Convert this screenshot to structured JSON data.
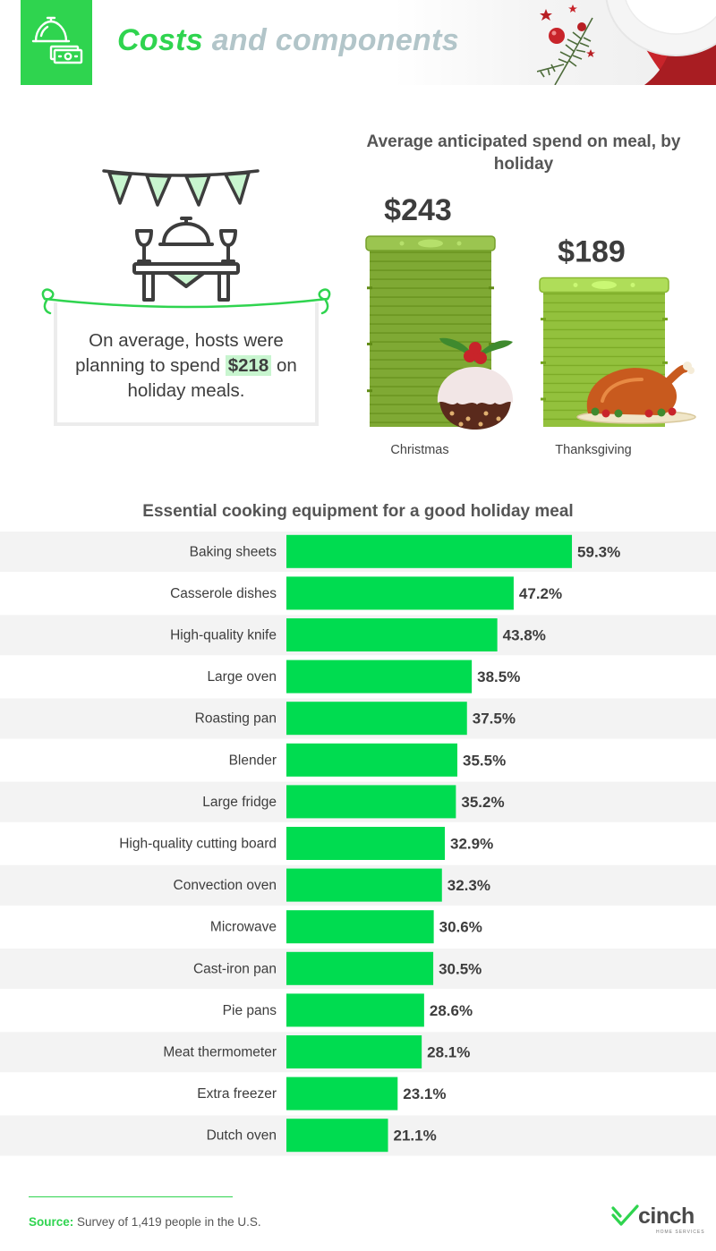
{
  "header": {
    "title_part1": "Costs",
    "title_part2": "and components",
    "icon": "cloche-cash-icon"
  },
  "callout": {
    "text_before": "On average, hosts were planning to spend ",
    "amount": "$218",
    "text_after": " on holiday meals."
  },
  "chart_data": [
    {
      "type": "bar",
      "title": "Average anticipated spend on meal, by holiday",
      "categories": [
        "Christmas",
        "Thanksgiving"
      ],
      "values": [
        243,
        189
      ],
      "value_labels": [
        "$243",
        "$189"
      ],
      "unit": "$",
      "colors": [
        "#7fa934",
        "#93c13d"
      ],
      "icons": [
        "christmas-pudding-icon",
        "roast-turkey-icon"
      ]
    },
    {
      "type": "bar",
      "orientation": "horizontal",
      "title": "Essential cooking equipment for a good holiday meal",
      "categories": [
        "Baking sheets",
        "Casserole dishes",
        "High-quality knife",
        "Large oven",
        "Roasting pan",
        "Blender",
        "Large fridge",
        "High-quality cutting board",
        "Convection oven",
        "Microwave",
        "Cast-iron pan",
        "Pie pans",
        "Meat thermometer",
        "Extra freezer",
        "Dutch oven"
      ],
      "values": [
        59.3,
        47.2,
        43.8,
        38.5,
        37.5,
        35.5,
        35.2,
        32.9,
        32.3,
        30.6,
        30.5,
        28.6,
        28.1,
        23.1,
        21.1
      ],
      "unit": "%",
      "bar_color": "#00dc50",
      "stripe_color": "#f3f3f3"
    }
  ],
  "footer": {
    "source_label": "Source:",
    "source_text": " Survey of 1,419 people in the U.S.",
    "brand": "cinch",
    "brand_sub": "HOME SERVICES"
  }
}
